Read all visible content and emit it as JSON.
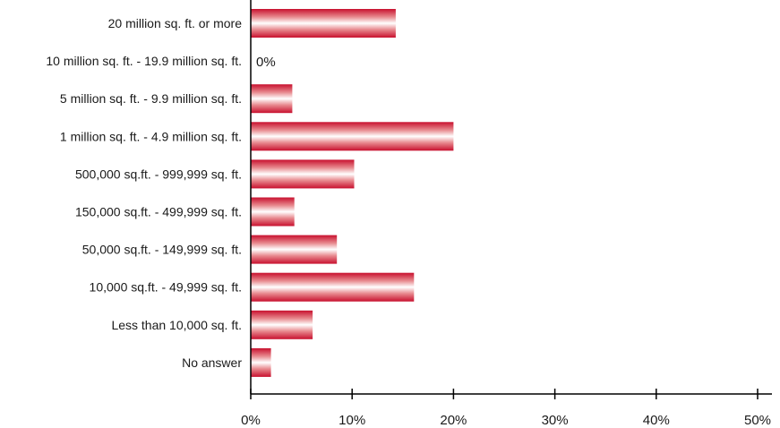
{
  "chart_data": {
    "type": "bar",
    "orientation": "horizontal",
    "categories": [
      "20 million sq. ft. or more",
      "10 million sq. ft. - 19.9 million sq. ft.",
      "5 million sq. ft. - 9.9 million sq. ft.",
      "1 million sq. ft. - 4.9 million sq. ft.",
      "500,000 sq.ft. - 999,999 sq. ft.",
      "150,000 sq.ft. - 499,999 sq. ft.",
      "50,000 sq.ft. - 149,999 sq. ft.",
      "10,000 sq.ft. - 49,999 sq. ft.",
      "Less than 10,000 sq. ft.",
      "No answer"
    ],
    "values": [
      14.3,
      0,
      4.1,
      20.0,
      10.2,
      4.3,
      8.5,
      16.1,
      6.1,
      2.0
    ],
    "data_labels": [
      {
        "category": "10 million sq. ft. - 19.9 million sq. ft.",
        "text": "0%"
      }
    ],
    "xlim": [
      0,
      50
    ],
    "xticks": [
      0,
      10,
      20,
      30,
      40,
      50
    ],
    "xtick_labels": [
      "0%",
      "10%",
      "20%",
      "30%",
      "40%",
      "50%"
    ],
    "title": "",
    "xlabel": "",
    "ylabel": "",
    "grid": false,
    "legend": "none",
    "bar_colors": {
      "edge": "#c8102e",
      "highlight": "#ffffff"
    }
  }
}
